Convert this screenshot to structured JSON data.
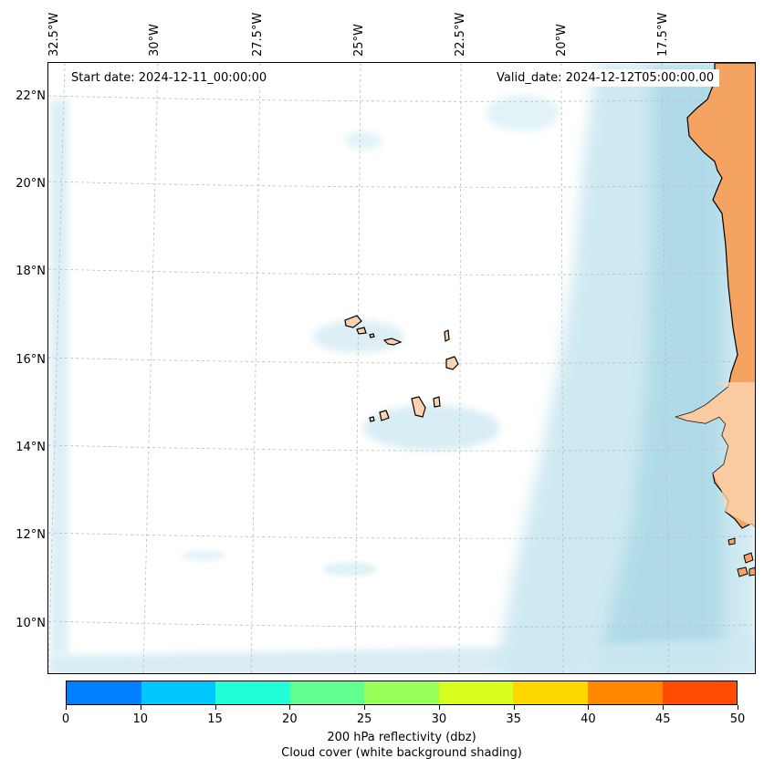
{
  "map": {
    "start_date": "Start date: 2024-12-11_00:00:00",
    "valid_date": "Valid_date: 2024-12-12T05:00:00.00",
    "lon_labels": [
      "32.5°W",
      "30°W",
      "27.5°W",
      "25°W",
      "22.5°W",
      "20°W",
      "17.5°W"
    ],
    "lat_labels": [
      "22°N",
      "20°N",
      "18°N",
      "16°N",
      "14°N",
      "12°N",
      "10°N"
    ],
    "colors": {
      "land": "#f4a460",
      "land_light": "#fbd3b0",
      "cloud": "#a8d8e6",
      "cloud_light": "#d6eef5",
      "coast": "#000000",
      "grid": "#bbbbbb"
    }
  },
  "colorbar": {
    "ticks": [
      "0",
      "10",
      "15",
      "20",
      "25",
      "30",
      "35",
      "40",
      "45",
      "50"
    ],
    "colors": [
      "#0080ff",
      "#00c8ff",
      "#20ffd8",
      "#60ff90",
      "#98ff58",
      "#d8ff20",
      "#ffd800",
      "#ff8800",
      "#ff4c00"
    ],
    "label_line1": "200 hPa reflectivity (dbz)",
    "label_line2": "Cloud cover (white background shading)"
  }
}
